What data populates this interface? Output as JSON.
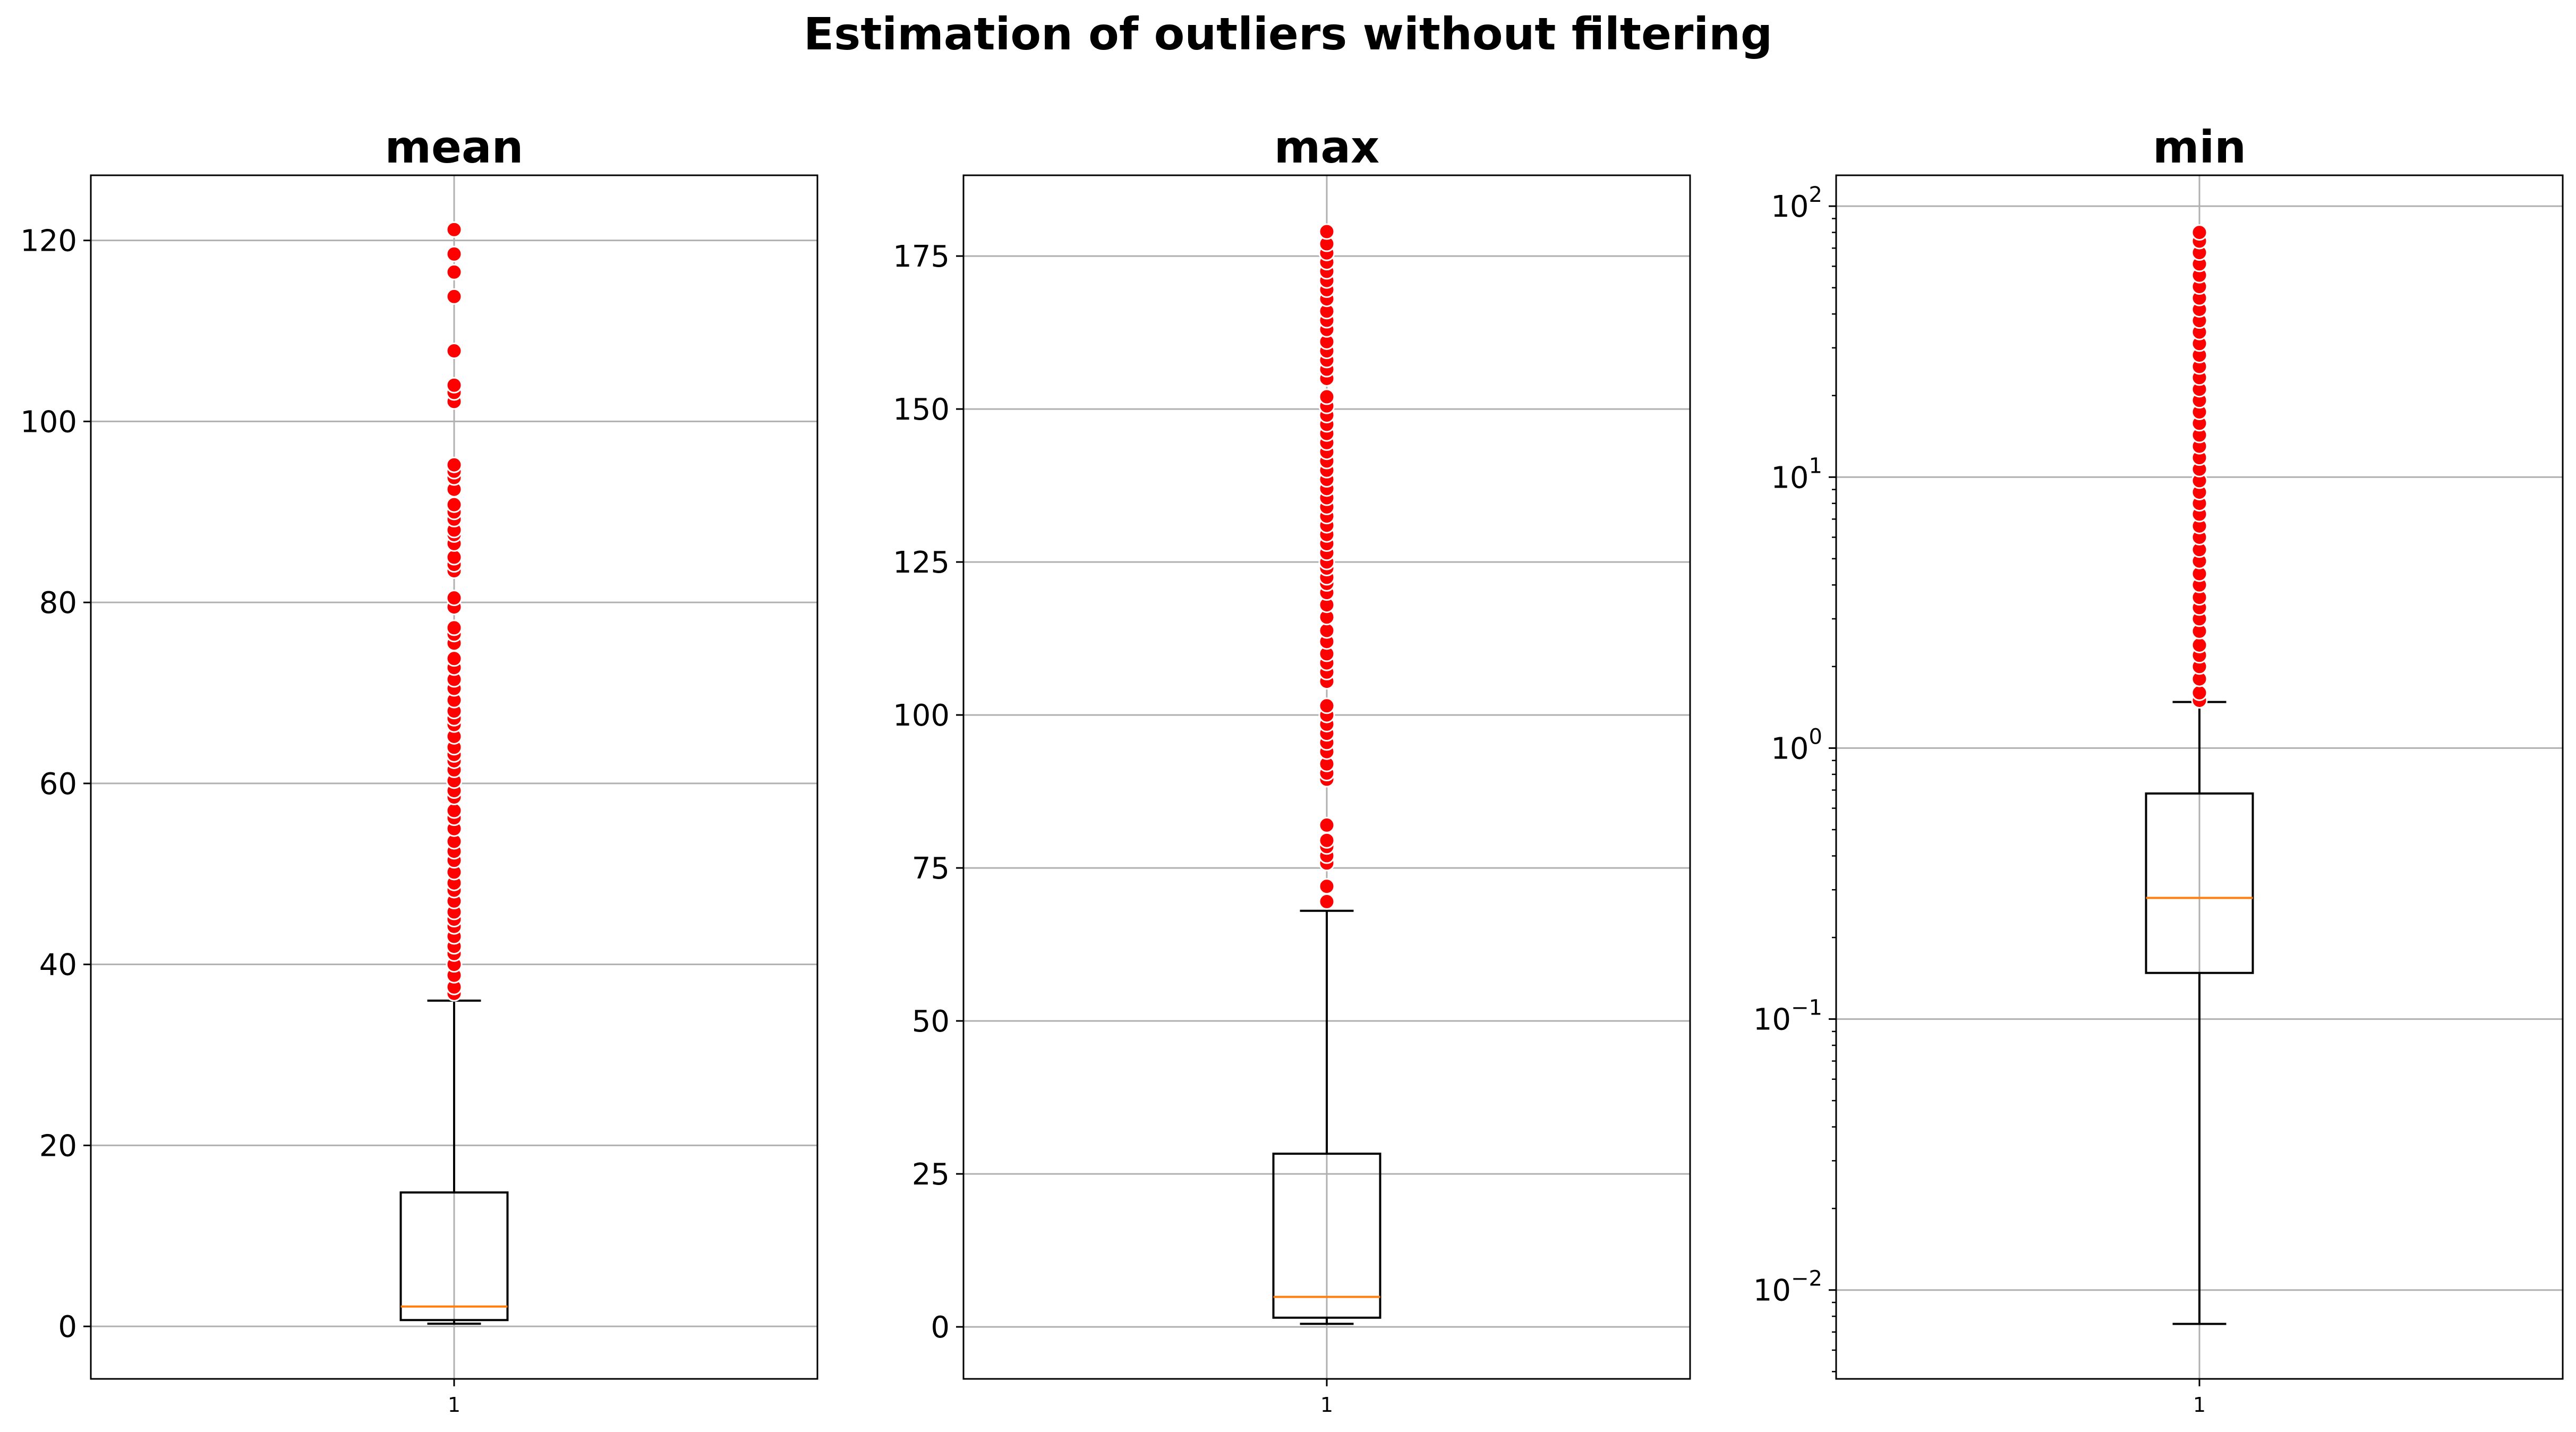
{
  "suptitle": "Estimation of outliers without filtering",
  "chart_data": [
    {
      "type": "boxplot",
      "title": "mean",
      "yscale": "linear",
      "ylim": [
        -5.8,
        127.2
      ],
      "yticks": [
        0,
        20,
        40,
        60,
        80,
        100,
        120
      ],
      "xticks": [
        "1"
      ],
      "grid": true,
      "box": {
        "whislo": 0.3,
        "q1": 0.7,
        "median": 2.2,
        "q3": 14.8,
        "whishi": 36.0
      },
      "outliers": [
        36.8,
        37.5,
        38.8,
        40.0,
        41.2,
        42.0,
        43.1,
        44.2,
        45.0,
        45.8,
        47.0,
        48.2,
        49.0,
        50.2,
        51.5,
        52.5,
        53.6,
        55.0,
        56.2,
        57.0,
        58.5,
        59.2,
        60.3,
        61.5,
        62.5,
        63.2,
        64.0,
        65.2,
        66.5,
        67.2,
        68.0,
        69.2,
        70.5,
        71.5,
        72.8,
        73.8,
        75.5,
        76.5,
        77.2,
        79.5,
        80.5,
        83.5,
        84.2,
        85.0,
        86.5,
        87.5,
        88.0,
        89.2,
        90.0,
        90.8,
        92.5,
        93.8,
        94.5,
        95.2,
        102.2,
        103.2,
        104.0,
        107.8,
        113.8,
        116.5,
        118.5,
        121.2
      ]
    },
    {
      "type": "boxplot",
      "title": "max",
      "yscale": "linear",
      "ylim": [
        -8.5,
        188.2
      ],
      "yticks": [
        0,
        25,
        50,
        75,
        100,
        125,
        150,
        175
      ],
      "xticks": [
        "1"
      ],
      "grid": true,
      "box": {
        "whislo": 0.5,
        "q1": 1.5,
        "median": 4.9,
        "q3": 28.3,
        "whishi": 68.0
      },
      "outliers": [
        69.5,
        72.0,
        75.8,
        77.0,
        78.5,
        79.5,
        82.0,
        89.5,
        90.5,
        92.0,
        94.0,
        95.5,
        97.0,
        98.5,
        100.0,
        101.5,
        105.5,
        107.0,
        108.5,
        110.0,
        112.0,
        113.8,
        116.0,
        118.0,
        120.0,
        121.5,
        122.5,
        124.0,
        125.0,
        126.5,
        128.0,
        129.5,
        131.0,
        132.5,
        134.0,
        135.5,
        137.0,
        138.5,
        140.0,
        141.5,
        143.0,
        144.5,
        146.0,
        147.5,
        149.0,
        150.5,
        152.0,
        155.0,
        156.5,
        158.0,
        159.5,
        161.0,
        163.0,
        164.5,
        166.0,
        168.0,
        169.5,
        171.0,
        172.5,
        174.0,
        175.5,
        177.0,
        179.0
      ]
    },
    {
      "type": "boxplot",
      "title": "min",
      "yscale": "log",
      "ylim": [
        0.0047,
        130
      ],
      "yticks": [
        0.01,
        0.1,
        1,
        10,
        100
      ],
      "ytick_labels": [
        [
          "10",
          "−2"
        ],
        [
          "10",
          "−1"
        ],
        [
          "10",
          "0"
        ],
        [
          "10",
          "1"
        ],
        [
          "10",
          "2"
        ]
      ],
      "xticks": [
        "1"
      ],
      "grid": true,
      "box": {
        "whislo": 0.0075,
        "q1": 0.148,
        "median": 0.28,
        "q3": 0.68,
        "whishi": 1.48
      },
      "outliers": [
        1.5,
        1.6,
        1.8,
        2.0,
        2.2,
        2.4,
        2.7,
        3.0,
        3.3,
        3.6,
        4.0,
        4.4,
        4.9,
        5.4,
        6.0,
        6.6,
        7.3,
        8.0,
        8.8,
        9.7,
        10.7,
        11.8,
        13.0,
        14.3,
        15.8,
        17.4,
        19.2,
        21.1,
        23.3,
        25.6,
        28.2,
        31.1,
        34.3,
        37.8,
        41.6,
        45.8,
        50.5,
        55.6,
        61.2,
        67.4,
        74.3,
        80.0
      ]
    }
  ],
  "colors": {
    "box": "#000000",
    "median": "#ff7f0e",
    "grid": "#b0b0b0",
    "flier_face": "#ff0000",
    "flier_edge": "#ffffff"
  }
}
